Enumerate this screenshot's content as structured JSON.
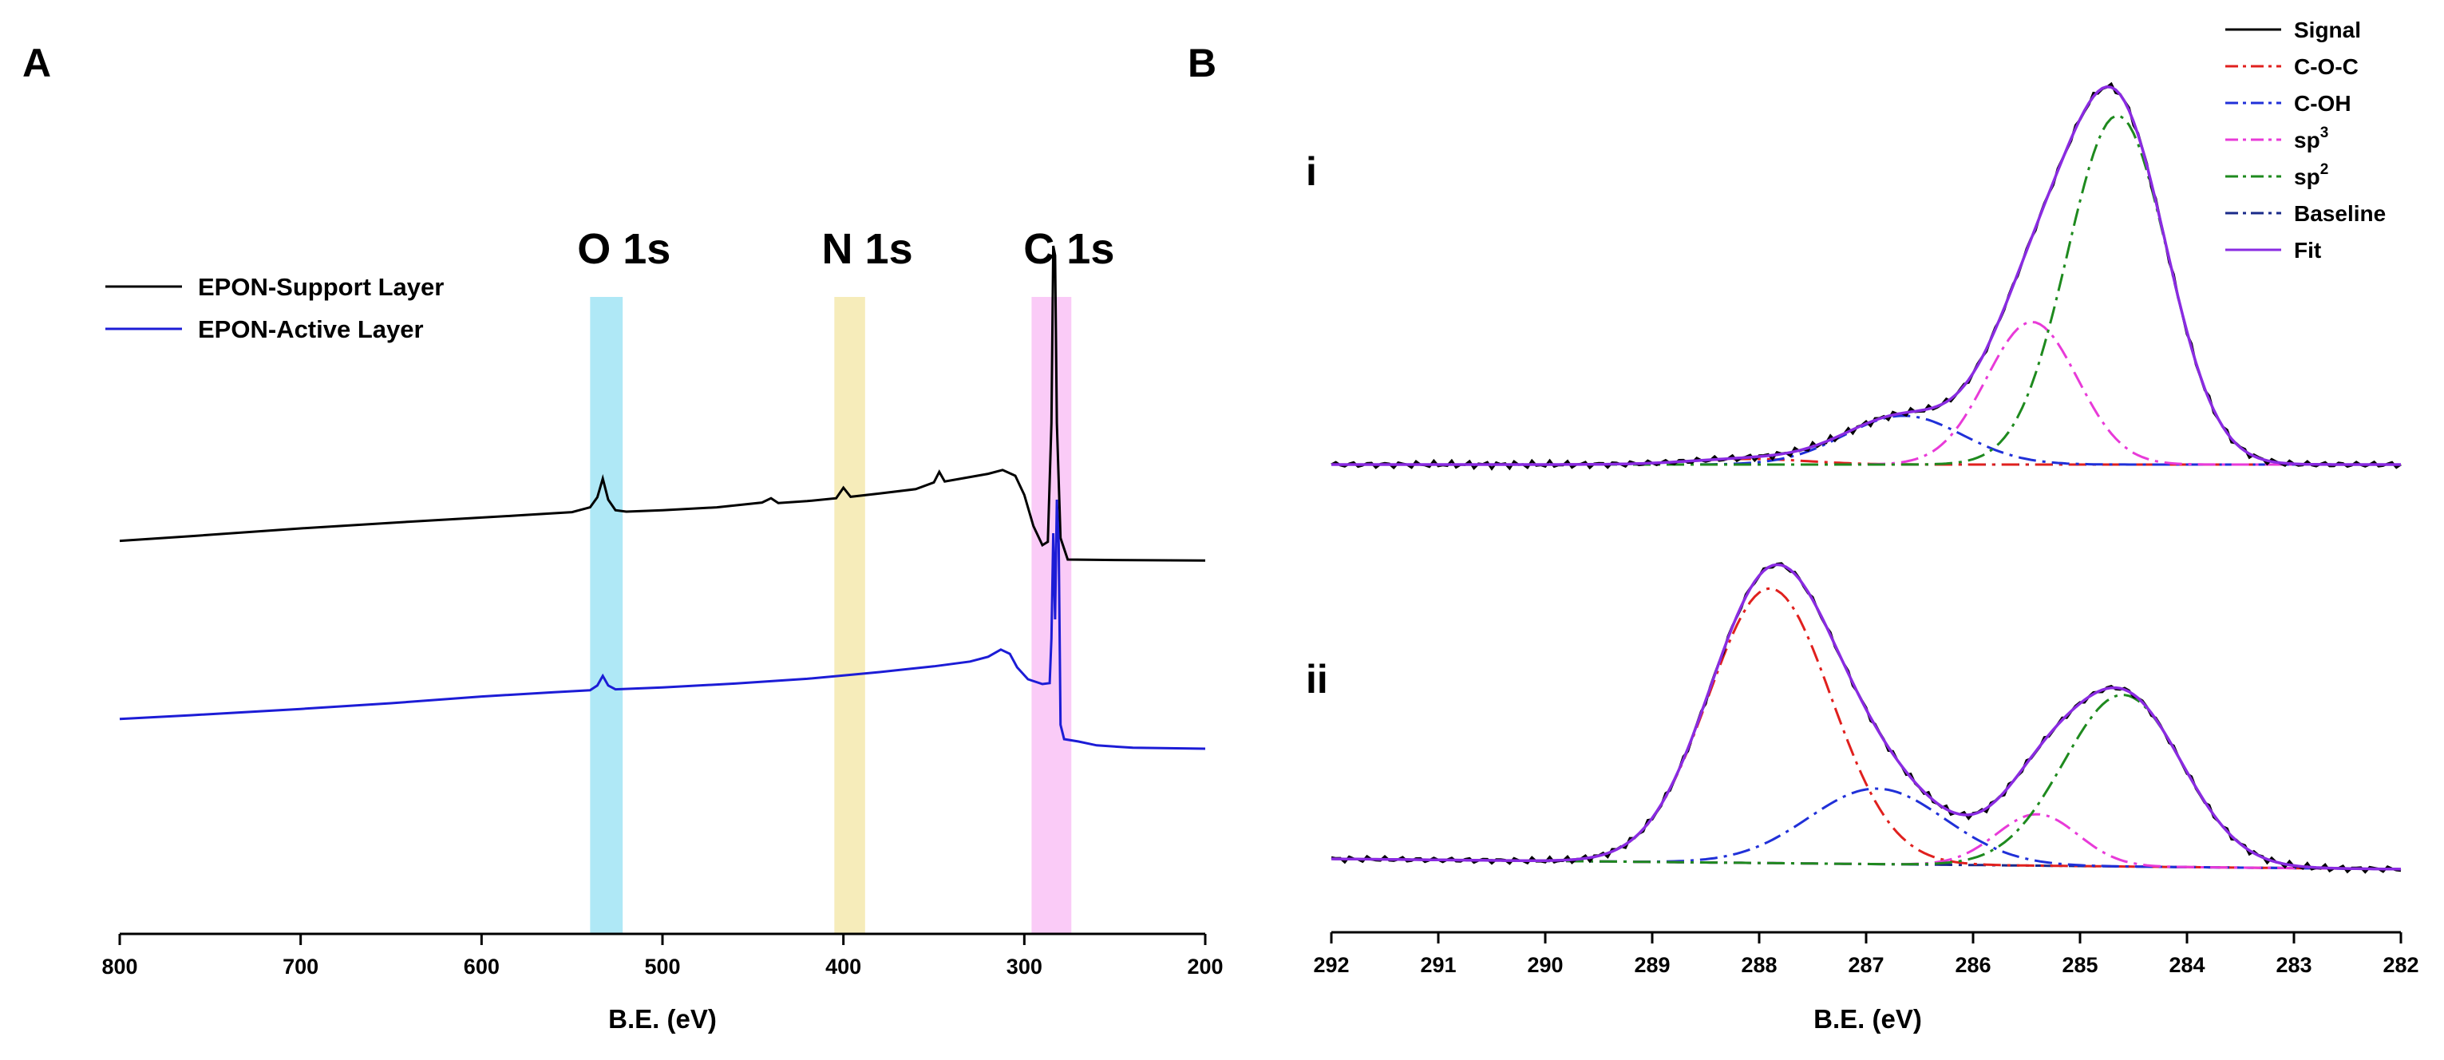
{
  "chart_data": [
    {
      "panel": "A",
      "type": "line",
      "xlabel": "B.E. (eV)",
      "xlim": [
        800,
        200
      ],
      "xticks": [
        800,
        700,
        600,
        500,
        400,
        300,
        200
      ],
      "y_axis_visible": false,
      "regions": [
        {
          "label": "O 1s",
          "x_range": [
            540,
            522
          ],
          "color": "#7ad8f0"
        },
        {
          "label": "N 1s",
          "x_range": [
            405,
            388
          ],
          "color": "#f0e08c"
        },
        {
          "label": "C 1s",
          "x_range": [
            296,
            274
          ],
          "color": "#f7a8f2"
        }
      ],
      "series": [
        {
          "name": "EPON-Support Layer",
          "color": "#000000",
          "points": [
            [
              800,
              20.4
            ],
            [
              760,
              21.4
            ],
            [
              700,
              23.0
            ],
            [
              640,
              24.4
            ],
            [
              580,
              25.7
            ],
            [
              550,
              26.4
            ],
            [
              540,
              27.4
            ],
            [
              536,
              29.5
            ],
            [
              533,
              33.4
            ],
            [
              530,
              29.0
            ],
            [
              526,
              26.8
            ],
            [
              520,
              26.5
            ],
            [
              500,
              26.8
            ],
            [
              470,
              27.4
            ],
            [
              445,
              28.4
            ],
            [
              440,
              29.3
            ],
            [
              436,
              28.3
            ],
            [
              420,
              28.7
            ],
            [
              404,
              29.3
            ],
            [
              400,
              31.5
            ],
            [
              396,
              29.6
            ],
            [
              380,
              30.3
            ],
            [
              360,
              31.2
            ],
            [
              350,
              32.6
            ],
            [
              347,
              34.8
            ],
            [
              344,
              32.8
            ],
            [
              335,
              33.4
            ],
            [
              320,
              34.4
            ],
            [
              312,
              35.2
            ],
            [
              305,
              34.0
            ],
            [
              300,
              30.0
            ],
            [
              295,
              23.5
            ],
            [
              290,
              19.5
            ],
            [
              287,
              20.2
            ],
            [
              285,
              45.0
            ],
            [
              284,
              82.0
            ],
            [
              283,
              80.0
            ],
            [
              282,
              45.0
            ],
            [
              280,
              21.0
            ],
            [
              276,
              16.5
            ],
            [
              250,
              16.4
            ],
            [
              200,
              16.3
            ]
          ]
        },
        {
          "name": "EPON-Active Layer",
          "color": "#1c1cd6",
          "points": [
            [
              800,
              -16.8
            ],
            [
              760,
              -16.0
            ],
            [
              700,
              -14.7
            ],
            [
              650,
              -13.5
            ],
            [
              600,
              -12.1
            ],
            [
              560,
              -11.2
            ],
            [
              540,
              -10.8
            ],
            [
              536,
              -9.8
            ],
            [
              533,
              -7.8
            ],
            [
              530,
              -9.8
            ],
            [
              526,
              -10.6
            ],
            [
              500,
              -10.2
            ],
            [
              460,
              -9.4
            ],
            [
              420,
              -8.4
            ],
            [
              400,
              -7.7
            ],
            [
              380,
              -7.0
            ],
            [
              350,
              -5.8
            ],
            [
              330,
              -4.8
            ],
            [
              320,
              -3.8
            ],
            [
              313,
              -2.3
            ],
            [
              308,
              -3.2
            ],
            [
              304,
              -6.0
            ],
            [
              298,
              -8.5
            ],
            [
              290,
              -9.5
            ],
            [
              286,
              -9.3
            ],
            [
              285,
              0.0
            ],
            [
              284,
              22.0
            ],
            [
              283,
              4.0
            ],
            [
              282,
              29.0
            ],
            [
              281,
              20.0
            ],
            [
              280,
              -18.0
            ],
            [
              278,
              -21.0
            ],
            [
              270,
              -21.5
            ],
            [
              260,
              -22.3
            ],
            [
              240,
              -22.8
            ],
            [
              200,
              -23.0
            ]
          ]
        }
      ],
      "legend": [
        {
          "label": "EPON-Support Layer",
          "color": "#000000"
        },
        {
          "label": "EPON-Active Layer",
          "color": "#1c1cd6"
        }
      ],
      "legend_position": "top-left"
    },
    {
      "panel": "B",
      "type": "line",
      "xlabel": "B.E. (eV)",
      "xlim": [
        292,
        282
      ],
      "xticks": [
        292,
        291,
        290,
        289,
        288,
        287,
        286,
        285,
        284,
        283,
        282
      ],
      "y_axis_visible": false,
      "legend_position": "top-right",
      "legend": [
        {
          "label": "Signal",
          "color": "#000000",
          "style": "solid"
        },
        {
          "label": "C-O-C",
          "color": "#e0201e",
          "style": "dashdot"
        },
        {
          "label": "C-OH",
          "color": "#2030d8",
          "style": "dashdot"
        },
        {
          "label": "sp",
          "sup": "3",
          "color": "#e83ad8",
          "style": "dashdot"
        },
        {
          "label": "sp",
          "sup": "2",
          "color": "#1e8a1e",
          "style": "dashdot"
        },
        {
          "label": "Baseline",
          "color": "#1a2a8a",
          "style": "dashdot"
        },
        {
          "label": "Fit",
          "color": "#8a2be2",
          "style": "solid"
        }
      ],
      "subplots": [
        {
          "label": "i",
          "baseline": [
            0.0,
            0.0
          ],
          "components": [
            {
              "name": "C-O-C",
              "center": 288.1,
              "height": 0.015,
              "fwhm": 1.3
            },
            {
              "name": "C-OH",
              "center": 286.65,
              "height": 0.13,
              "fwhm": 1.3
            },
            {
              "name": "sp3",
              "center": 285.45,
              "height": 0.38,
              "fwhm": 1.0
            },
            {
              "name": "sp2",
              "center": 284.65,
              "height": 0.93,
              "fwhm": 1.1
            }
          ]
        },
        {
          "label": "ii",
          "baseline": [
            0.0,
            -0.03
          ],
          "components": [
            {
              "name": "C-O-C",
              "center": 287.9,
              "height": 0.8,
              "fwhm": 1.35
            },
            {
              "name": "C-OH",
              "center": 286.9,
              "height": 0.22,
              "fwhm": 1.5
            },
            {
              "name": "sp3",
              "center": 285.4,
              "height": 0.15,
              "fwhm": 0.9
            },
            {
              "name": "sp2",
              "center": 284.6,
              "height": 0.5,
              "fwhm": 1.3
            }
          ]
        }
      ]
    }
  ],
  "figure": {
    "panel_letters": [
      "A",
      "B"
    ]
  }
}
